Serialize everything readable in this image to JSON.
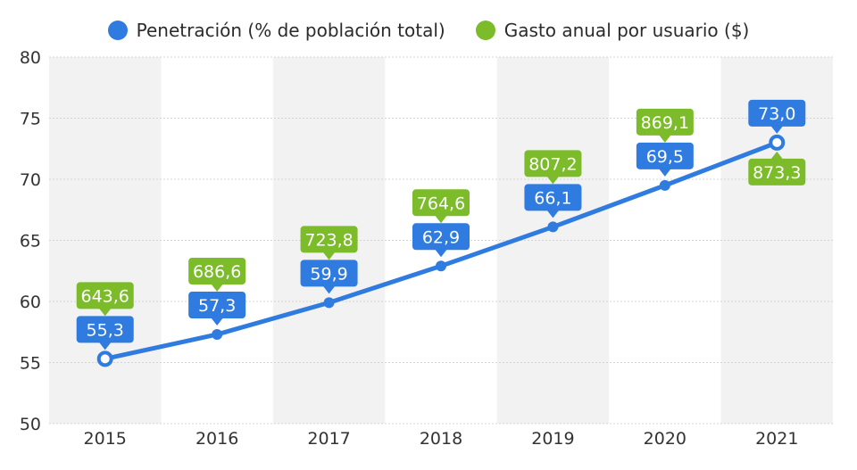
{
  "chart_data": {
    "type": "line",
    "categories": [
      "2015",
      "2016",
      "2017",
      "2018",
      "2019",
      "2020",
      "2021"
    ],
    "series": [
      {
        "name": "Penetración (% de población total)",
        "color": "#2f7be0",
        "values": [
          55.3,
          57.3,
          59.9,
          62.9,
          66.1,
          69.5,
          73.0
        ],
        "labels": [
          "55,3",
          "57,3",
          "59,9",
          "62,9",
          "66,1",
          "69,5",
          "73,0"
        ]
      },
      {
        "name": "Gasto anual por usuario ($)",
        "color": "#7cbb29",
        "values": [
          643.6,
          686.6,
          723.8,
          764.6,
          807.2,
          869.1,
          873.3
        ],
        "labels": [
          "643,6",
          "686,6",
          "723,8",
          "764,6",
          "807,2",
          "869,1",
          "873,3"
        ]
      }
    ],
    "yticks": [
      "50",
      "55",
      "60",
      "65",
      "70",
      "75",
      "80"
    ],
    "ylim": [
      50,
      80
    ],
    "legend_position": "top",
    "grid": true
  }
}
